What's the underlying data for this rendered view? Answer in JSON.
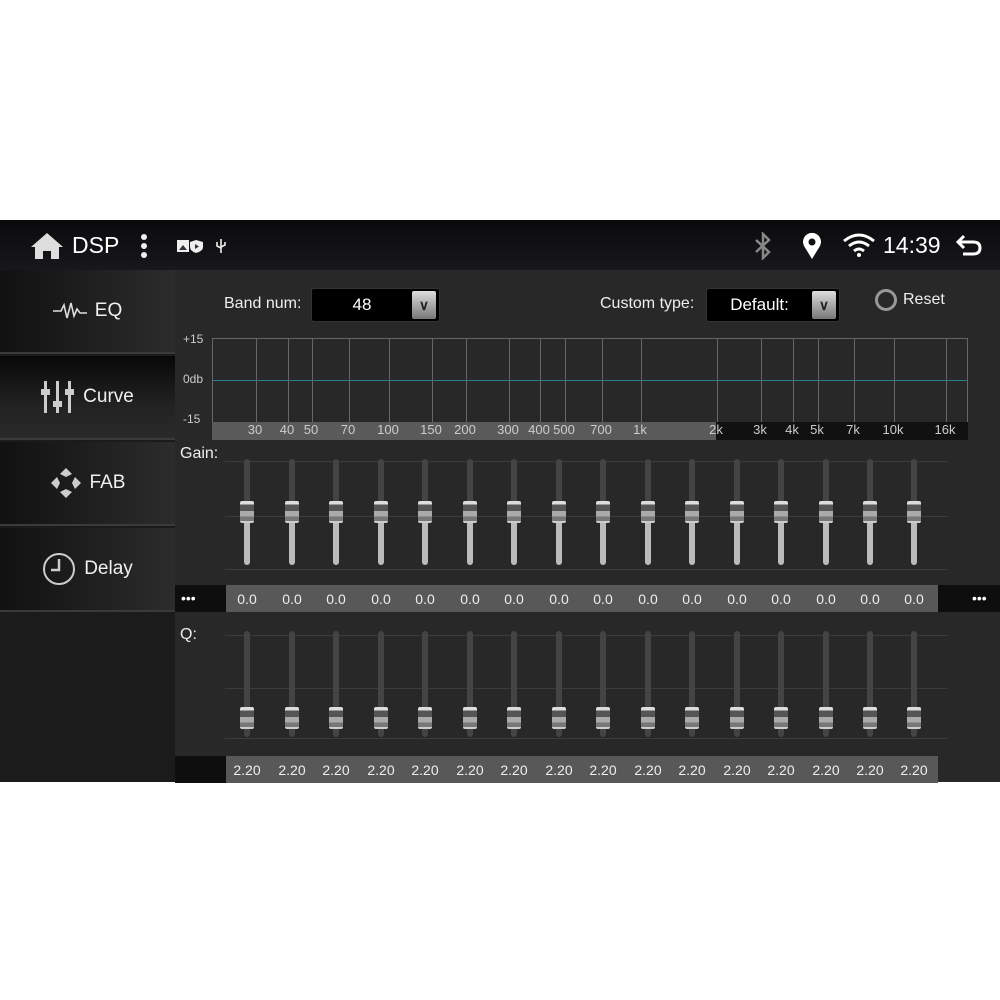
{
  "status_bar": {
    "title": "DSP",
    "time": "14:39",
    "icons": [
      "home-icon",
      "more-vert-icon",
      "image-icon",
      "shield-play-icon",
      "usb-icon",
      "bluetooth-icon",
      "location-icon",
      "wifi-icon",
      "back-icon"
    ]
  },
  "sidebar": {
    "items": [
      {
        "label": "EQ",
        "icon": "waveform-icon"
      },
      {
        "label": "Curve",
        "icon": "sliders-icon",
        "active": true
      },
      {
        "label": "FAB",
        "icon": "fader-balance-icon"
      },
      {
        "label": "Delay",
        "icon": "clock-icon"
      }
    ]
  },
  "controls": {
    "band_num_label": "Band num:",
    "band_num_value": "48",
    "custom_type_label": "Custom type:",
    "custom_type_value": "Default:",
    "reset_label": "Reset"
  },
  "graph": {
    "y_labels": [
      "+15",
      "0db",
      "-15"
    ],
    "freq_labels": [
      "30",
      "40",
      "50",
      "70",
      "100",
      "150",
      "200",
      "300",
      "400",
      "500",
      "700",
      "1k",
      "2k",
      "3k",
      "4k",
      "5k",
      "7k",
      "10k",
      "16k"
    ],
    "curve_color": "#2a7f8f"
  },
  "gain": {
    "label": "Gain:",
    "more": "•••",
    "range": [
      -15,
      15
    ],
    "values": [
      "0.0",
      "0.0",
      "0.0",
      "0.0",
      "0.0",
      "0.0",
      "0.0",
      "0.0",
      "0.0",
      "0.0",
      "0.0",
      "0.0",
      "0.0",
      "0.0",
      "0.0",
      "0.0"
    ]
  },
  "q": {
    "label": "Q:",
    "values": [
      "2.20",
      "2.20",
      "2.20",
      "2.20",
      "2.20",
      "2.20",
      "2.20",
      "2.20",
      "2.20",
      "2.20",
      "2.20",
      "2.20",
      "2.20",
      "2.20",
      "2.20",
      "2.20"
    ]
  }
}
